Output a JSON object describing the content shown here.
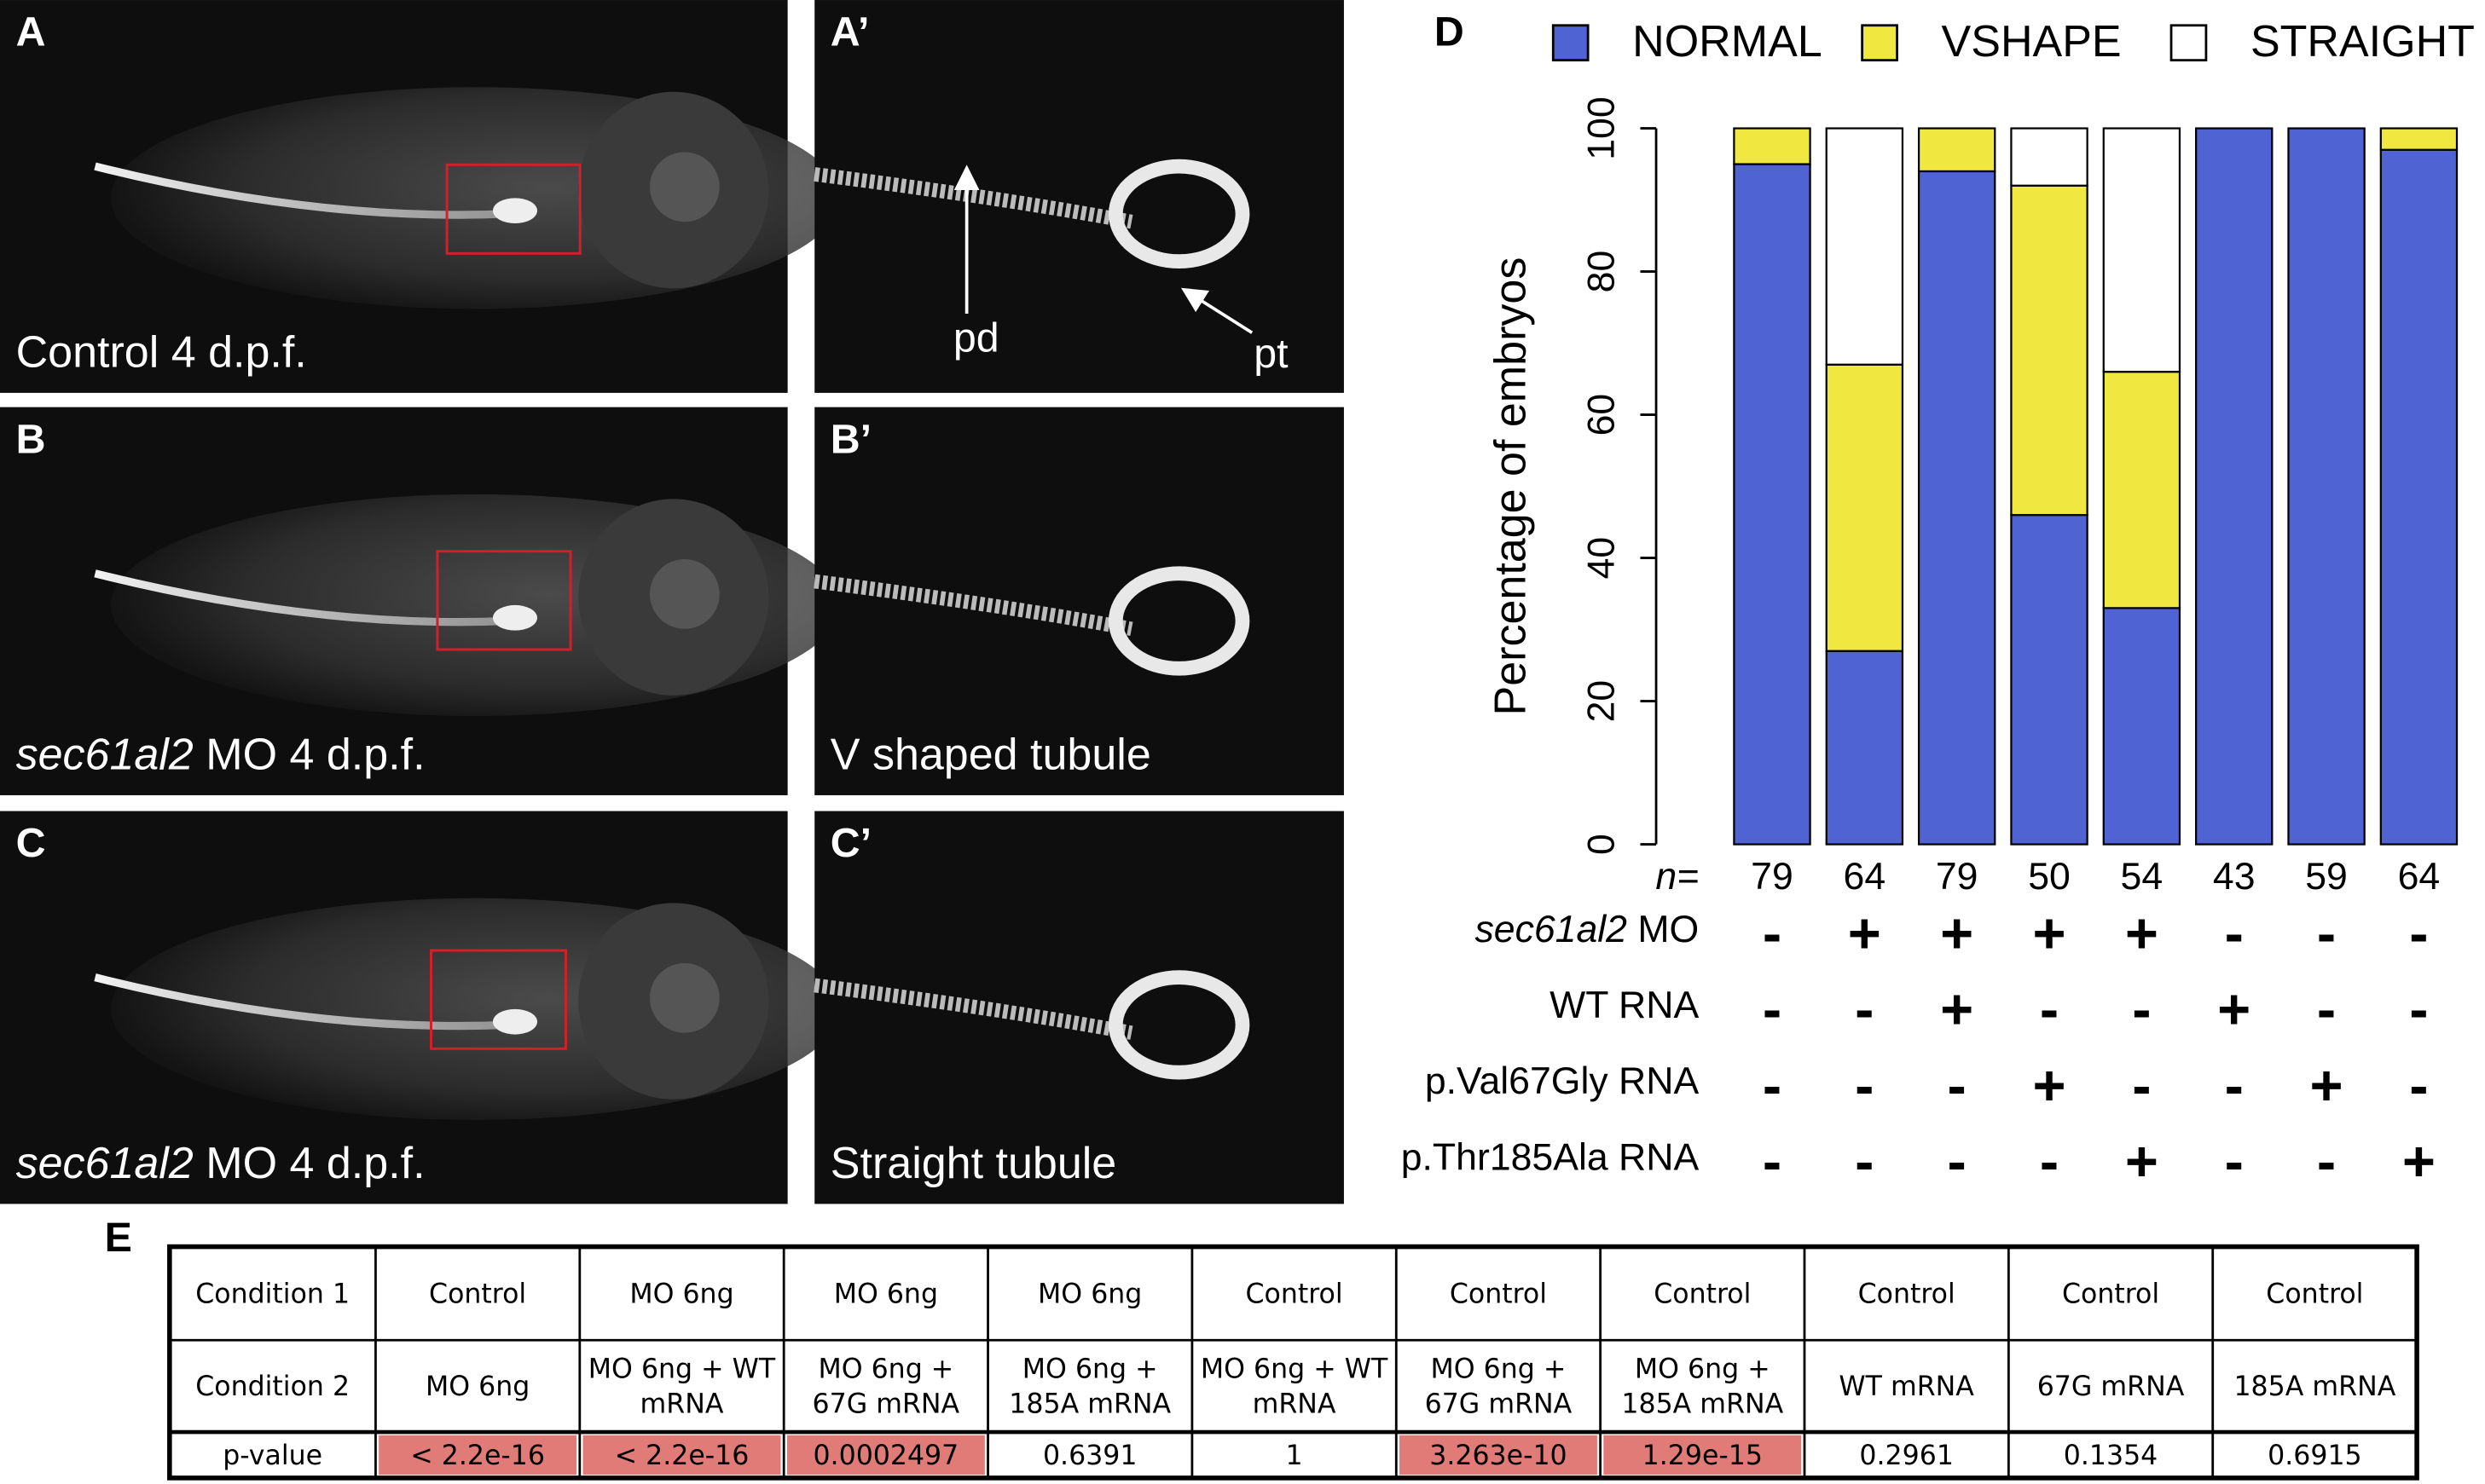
{
  "panels": [
    {
      "letter": "A",
      "caption": "Control 4 d.p.f."
    },
    {
      "letter": "A’",
      "annotations": [
        "pd",
        "pt"
      ]
    },
    {
      "letter": "B",
      "caption_italic": "sec61al2",
      "caption": "MO 4 d.p.f."
    },
    {
      "letter": "B’",
      "caption": "V shaped tubule"
    },
    {
      "letter": "C",
      "caption_italic": "sec61al2",
      "caption": "MO 4 d.p.f."
    },
    {
      "letter": "C’",
      "caption": "Straight tubule"
    }
  ],
  "chart_data": {
    "type": "stacked_bar",
    "panel_letter": "D",
    "y_label": "Percentage of embryos",
    "ylim": [
      0,
      100
    ],
    "yticks": [
      0,
      20,
      40,
      60,
      80,
      100
    ],
    "series": [
      {
        "name": "NORMAL",
        "color": "#4f63d2",
        "values": [
          95,
          27,
          94,
          46,
          33,
          100,
          100,
          97
        ]
      },
      {
        "name": "VSHAPE",
        "color": "#f0e840",
        "values": [
          5,
          40,
          6,
          46,
          33,
          0,
          0,
          3
        ]
      },
      {
        "name": "STRAIGHT",
        "color": "#ffffff",
        "values": [
          0,
          33,
          0,
          8,
          34,
          0,
          0,
          0
        ]
      }
    ],
    "n_label": "n=",
    "n": [
      79,
      64,
      79,
      50,
      54,
      43,
      59,
      64
    ],
    "conditions": [
      {
        "name_italic": "sec61al2",
        "name": "MO",
        "values": [
          "-",
          "+",
          "+",
          "+",
          "+",
          "-",
          "-",
          "-"
        ]
      },
      {
        "name": "WT RNA",
        "values": [
          "-",
          "-",
          "+",
          "-",
          "-",
          "+",
          "-",
          "-"
        ]
      },
      {
        "name": "p.Val67Gly RNA",
        "values": [
          "-",
          "-",
          "-",
          "+",
          "-",
          "-",
          "+",
          "-"
        ]
      },
      {
        "name": "p.Thr185Ala RNA",
        "values": [
          "-",
          "-",
          "-",
          "-",
          "+",
          "-",
          "-",
          "+"
        ]
      }
    ]
  },
  "table": {
    "panel_letter": "E",
    "rows": [
      [
        [
          "Condition 1"
        ],
        [
          "Control"
        ],
        [
          "MO 6ng"
        ],
        [
          "MO 6ng"
        ],
        [
          "MO 6ng"
        ],
        [
          "Control"
        ],
        [
          "Control"
        ],
        [
          "Control"
        ],
        [
          "Control"
        ],
        [
          "Control"
        ],
        [
          "Control"
        ]
      ],
      [
        [
          "Condition 2"
        ],
        [
          "MO 6ng"
        ],
        [
          "MO 6ng + WT",
          "mRNA"
        ],
        [
          "MO 6ng +",
          "67G mRNA"
        ],
        [
          "MO 6ng +",
          "185A mRNA"
        ],
        [
          "MO 6ng + WT",
          "mRNA"
        ],
        [
          "MO 6ng +",
          "67G mRNA"
        ],
        [
          "MO 6ng +",
          "185A mRNA"
        ],
        [
          "WT mRNA"
        ],
        [
          "67G mRNA"
        ],
        [
          "185A mRNA"
        ]
      ],
      [
        [
          "p-value"
        ],
        [
          "< 2.2e-16"
        ],
        [
          "< 2.2e-16"
        ],
        [
          "0.0002497"
        ],
        [
          "0.6391"
        ],
        [
          "1"
        ],
        [
          "3.263e-10"
        ],
        [
          "1.29e-15"
        ],
        [
          "0.2961"
        ],
        [
          "0.1354"
        ],
        [
          "0.6915"
        ]
      ]
    ],
    "highlight": [
      true,
      true,
      true,
      false,
      false,
      true,
      true,
      false,
      false,
      false
    ],
    "highlight_color": "#e07b77"
  }
}
